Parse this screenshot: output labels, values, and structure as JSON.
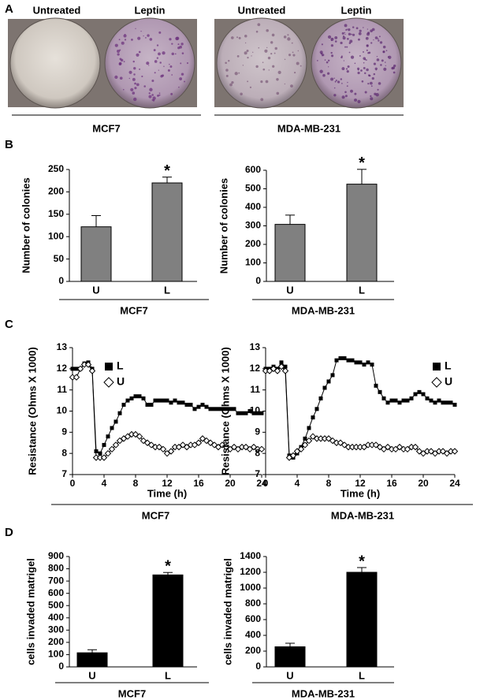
{
  "panel_labels": [
    "A",
    "B",
    "C",
    "D"
  ],
  "panel_a": {
    "cells": [
      {
        "untreated": "Untreated",
        "leptin": "Leptin",
        "cell_line": "MCF7"
      },
      {
        "untreated": "Untreated",
        "leptin": "Leptin",
        "cell_line": "MDA-MB-231"
      }
    ]
  },
  "chart_data": [
    {
      "type": "bar",
      "ylabel": "Number of colonies",
      "group_label": "MCF7",
      "categories": [
        "U",
        "L"
      ],
      "values": [
        122,
        220
      ],
      "errors": [
        25,
        13
      ],
      "color": "#808080",
      "annotation": "*",
      "ylim": [
        0,
        250
      ],
      "yticks": [
        0,
        50,
        100,
        150,
        200,
        250
      ]
    },
    {
      "type": "bar",
      "ylabel": "Number of colonies",
      "group_label": "MDA-MB-231",
      "categories": [
        "U",
        "L"
      ],
      "values": [
        308,
        525
      ],
      "errors": [
        50,
        80
      ],
      "color": "#808080",
      "annotation": "*",
      "ylim": [
        0,
        600
      ],
      "yticks": [
        0,
        100,
        200,
        300,
        400,
        500,
        600
      ]
    },
    {
      "type": "line",
      "xlabel": "Time (h)",
      "ylabel": "Resistance (Ohms X 1000)",
      "group_label": "MCF7",
      "x": [
        0,
        0.5,
        1,
        1.5,
        2,
        2.5,
        3,
        3.5,
        4,
        4.5,
        5,
        5.5,
        6,
        6.5,
        7,
        7.5,
        8,
        8.5,
        9,
        9.5,
        10,
        10.5,
        11,
        11.5,
        12,
        12.5,
        13,
        13.5,
        14,
        14.5,
        15,
        15.5,
        16,
        16.5,
        17,
        17.5,
        18,
        18.5,
        19,
        19.5,
        20,
        20.5,
        21,
        21.5,
        22,
        22.5,
        23,
        23.5,
        24
      ],
      "series": [
        {
          "name": "L",
          "color": "#000000",
          "marker": "filled-square",
          "values": [
            12.0,
            12.0,
            12.0,
            12.25,
            12.3,
            12.0,
            8.1,
            8.0,
            8.4,
            8.8,
            9.2,
            9.5,
            9.9,
            10.3,
            10.5,
            10.6,
            10.7,
            10.7,
            10.6,
            10.3,
            10.3,
            10.5,
            10.5,
            10.5,
            10.5,
            10.4,
            10.5,
            10.4,
            10.4,
            10.3,
            10.3,
            10.1,
            10.2,
            10.3,
            10.2,
            10.1,
            10.1,
            10.1,
            10.1,
            10.1,
            10.1,
            10.1,
            9.9,
            9.9,
            9.9,
            10.0,
            9.9,
            9.9,
            9.9
          ]
        },
        {
          "name": "U",
          "color": "#000000",
          "marker": "open-diamond",
          "values": [
            11.6,
            11.6,
            12.0,
            12.2,
            12.2,
            11.9,
            7.8,
            7.8,
            7.8,
            8.0,
            8.2,
            8.4,
            8.6,
            8.7,
            8.8,
            8.9,
            8.9,
            8.8,
            8.6,
            8.5,
            8.4,
            8.3,
            8.3,
            8.2,
            8.0,
            8.1,
            8.3,
            8.3,
            8.4,
            8.3,
            8.4,
            8.4,
            8.5,
            8.7,
            8.6,
            8.5,
            8.4,
            8.3,
            8.4,
            8.3,
            8.2,
            8.3,
            8.2,
            8.3,
            8.3,
            8.2,
            8.3,
            8.2,
            8.2
          ]
        }
      ],
      "xlim": [
        0,
        24
      ],
      "xticks": [
        0,
        4,
        8,
        12,
        16,
        20,
        24
      ],
      "ylim": [
        7,
        13
      ],
      "yticks": [
        7,
        8,
        9,
        10,
        11,
        12,
        13
      ]
    },
    {
      "type": "line",
      "xlabel": "Time (h)",
      "ylabel": "Resistance (Ohms X 1000)",
      "group_label": "MDA-MB-231",
      "x": [
        0,
        0.5,
        1,
        1.5,
        2,
        2.5,
        3,
        3.5,
        4,
        4.5,
        5,
        5.5,
        6,
        6.5,
        7,
        7.5,
        8,
        8.5,
        9,
        9.5,
        10,
        10.5,
        11,
        11.5,
        12,
        12.5,
        13,
        13.5,
        14,
        14.5,
        15,
        15.5,
        16,
        16.5,
        17,
        17.5,
        18,
        18.5,
        19,
        19.5,
        20,
        20.5,
        21,
        21.5,
        22,
        22.5,
        23,
        23.5,
        24
      ],
      "series": [
        {
          "name": "L",
          "color": "#000000",
          "marker": "filled-square",
          "values": [
            12.0,
            12.0,
            12.1,
            12.0,
            12.3,
            12.1,
            7.9,
            7.8,
            8.0,
            8.3,
            8.7,
            9.2,
            9.7,
            10.1,
            10.6,
            11.1,
            11.4,
            11.7,
            12.4,
            12.5,
            12.5,
            12.4,
            12.4,
            12.3,
            12.3,
            12.2,
            12.3,
            12.2,
            11.2,
            10.9,
            10.6,
            10.4,
            10.5,
            10.5,
            10.4,
            10.5,
            10.5,
            10.6,
            10.8,
            10.9,
            10.8,
            10.6,
            10.5,
            10.4,
            10.5,
            10.4,
            10.4,
            10.4,
            10.3
          ]
        },
        {
          "name": "U",
          "color": "#000000",
          "marker": "open-diamond",
          "values": [
            11.9,
            11.9,
            12.0,
            11.9,
            12.1,
            11.9,
            7.8,
            7.9,
            8.1,
            8.2,
            8.4,
            8.6,
            8.8,
            8.7,
            8.7,
            8.7,
            8.7,
            8.6,
            8.5,
            8.5,
            8.4,
            8.3,
            8.3,
            8.3,
            8.3,
            8.3,
            8.4,
            8.4,
            8.4,
            8.3,
            8.2,
            8.3,
            8.2,
            8.2,
            8.3,
            8.2,
            8.2,
            8.3,
            8.3,
            8.1,
            8.0,
            8.1,
            8.1,
            8.0,
            8.1,
            8.1,
            8.0,
            8.1,
            8.1
          ]
        }
      ],
      "xlim": [
        0,
        24
      ],
      "xticks": [
        0,
        4,
        8,
        12,
        16,
        20,
        24
      ],
      "ylim": [
        7,
        13
      ],
      "yticks": [
        7,
        8,
        9,
        10,
        11,
        12,
        13
      ]
    },
    {
      "type": "bar",
      "ylabel": "cells invaded matrigel",
      "group_label": "MCF7",
      "categories": [
        "U",
        "L"
      ],
      "values": [
        115,
        750
      ],
      "errors": [
        25,
        20
      ],
      "color": "#000000",
      "annotation": "*",
      "ylim": [
        0,
        900
      ],
      "yticks": [
        0,
        100,
        200,
        300,
        400,
        500,
        600,
        700,
        800,
        900
      ]
    },
    {
      "type": "bar",
      "ylabel": "cells invaded matrigel",
      "group_label": "MDA-MB-231",
      "categories": [
        "U",
        "L"
      ],
      "values": [
        255,
        1200
      ],
      "errors": [
        45,
        60
      ],
      "color": "#000000",
      "annotation": "*",
      "ylim": [
        0,
        1400
      ],
      "yticks": [
        0,
        200,
        400,
        600,
        800,
        1000,
        1200,
        1400
      ]
    }
  ]
}
